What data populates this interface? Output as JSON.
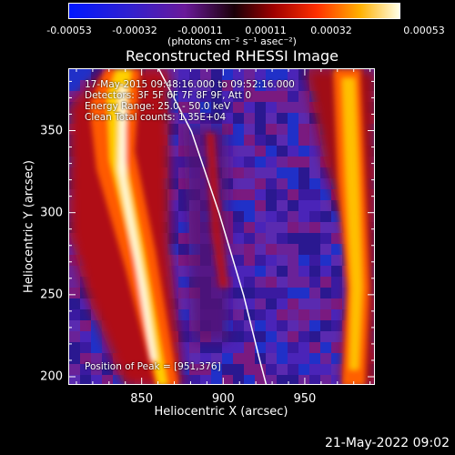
{
  "colorbar": {
    "tick_labels": [
      "-0.00053",
      "-0.00032",
      "-0.00011",
      "0.00011",
      "0.00032",
      "0.00053"
    ],
    "units": "(photons cm⁻² s⁻¹ asec⁻²)"
  },
  "chart_data": {
    "type": "heatmap",
    "title": "Reconstructed RHESSI Image",
    "xlabel": "Heliocentric X (arcsec)",
    "ylabel": "Heliocentric Y (arcsec)",
    "xlim": [
      805,
      993
    ],
    "ylim": [
      195,
      388
    ],
    "x_ticks": [
      850,
      900,
      950
    ],
    "y_ticks": [
      200,
      250,
      300,
      350
    ],
    "info_lines": [
      "17-May-2015 09:48:16.000 to 09:52:16.000",
      "Detectors: 3F 5F 6F 7F 8F 9F, Att 0",
      "Energy Range: 25.0 - 50.0 keV",
      "Clean   Total counts: 1.35E+04"
    ],
    "peak_label": "Position of Peak = [951,376]",
    "peak": [
      951,
      376
    ],
    "limb_curve": [
      [
        860,
        388
      ],
      [
        880,
        350
      ],
      [
        897,
        300
      ],
      [
        912,
        250
      ],
      [
        922,
        210
      ],
      [
        926,
        195
      ]
    ],
    "color_range": [
      -0.00053,
      0.00053
    ],
    "colormap": "blue-purple-red-yellow-white",
    "grid": false
  },
  "footer": {
    "date": "21-May-2022 09:02"
  }
}
